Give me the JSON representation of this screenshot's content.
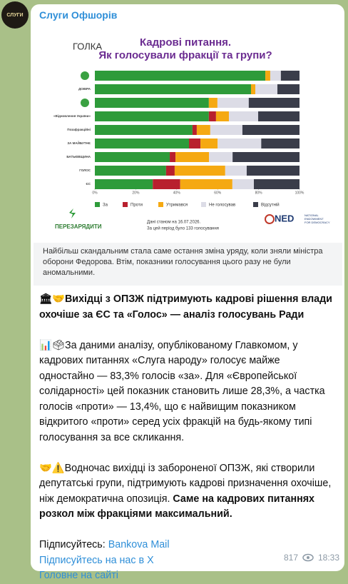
{
  "channel": {
    "name": "Слуги Офшорів",
    "avatar_text": "СЛУГИ"
  },
  "chart_data": {
    "type": "stacked-barh",
    "logo": "ГОЛКА",
    "title": "Кадрові питання.",
    "subtitle": "Як голосували фракції та групи?",
    "categories": [
      null,
      "ДОВІРА",
      null,
      "«Відновлення України»",
      "Позафракційні",
      "ЗА МАЙБУТНЄ",
      "БАТЬКІВЩИНА",
      "ГОЛОС",
      "ЄС"
    ],
    "series": [
      {
        "name": "За",
        "color": "#2e9b3a",
        "values": [
          83.3,
          76.3,
          55.7,
          55.7,
          47.7,
          46,
          36.6,
          34.8,
          28.3
        ]
      },
      {
        "name": "Проти",
        "color": "#b8202e",
        "values": [
          0,
          0,
          0,
          3.5,
          2.1,
          5.6,
          2.8,
          4.2,
          13.4
        ]
      },
      {
        "name": "Утримався",
        "color": "#f5a912",
        "values": [
          2.4,
          2.1,
          4.2,
          6.3,
          6.6,
          8.4,
          16.4,
          24.7,
          25.5
        ]
      },
      {
        "name": "Не голосував",
        "color": "#dcdce6",
        "values": [
          5.2,
          10.8,
          15.3,
          14.3,
          15.7,
          21.3,
          11.5,
          10.5,
          10.5
        ]
      },
      {
        "name": "Відсутній",
        "color": "#3a3d4a",
        "values": [
          9.1,
          10.8,
          24.8,
          20.2,
          27.9,
          18.7,
          32.7,
          25.8,
          22.3
        ]
      }
    ],
    "xlim": [
      0,
      100
    ],
    "xticks": [
      {
        "value": 0,
        "label": "0%"
      },
      {
        "value": 20,
        "label": "20%"
      },
      {
        "value": 40,
        "label": "40%"
      },
      {
        "value": 60,
        "label": "60%"
      },
      {
        "value": 80,
        "label": "80%"
      },
      {
        "value": 100,
        "label": "100%"
      }
    ],
    "footer_brand": "ПЕРЕЗАРЯДИТИ",
    "footer_note": [
      "Дані станом на 16.07.2026.",
      "За цей період було 133 голосування"
    ],
    "sponsor": "NED",
    "sponsor_full": [
      "NATIONAL",
      "ENDOWMENT",
      "FOR DEMOCRACY"
    ]
  },
  "caption": "Найбільш скандальним стала саме остання зміна уряду, коли зняли міністра оборони Федорова. Втім, показники голосування цього разу не були аномальними.",
  "post": {
    "heading": "🏛🤝Вихідці з ОПЗЖ підтримують кадрові рішення влади охочіше за ЄС та «Голос» — аналіз голосувань Ради",
    "paragraph": "📊🗳За даними аналізу, опублікованому Главкомом, у кадрових питаннях «Слуга народу» голосує майже одностайно — 83,3% голосів «за». Для «Європейської солідарності» цей показник становить лише 28,3%, а частка голосів «проти» — 13,4%, що є найвищим показником відкритого «проти» серед усіх фракцій на будь-якому типі голосування за все скликання.",
    "paragraph2": [
      "🤝⚠️Водночас вихідці із забороненої ОПЗЖ, які створили депутатські групи, підтримують кадрові призначення охочіше, ніж демократична опозиція. ",
      "Саме на кадрових питаннях розкол між фракціями максимальний."
    ],
    "subscribe_label": "Підписуйтесь:",
    "links": [
      "Bankova Mail",
      "Підписуйтесь на нас в Х",
      "Головне на сайті"
    ],
    "views": 817,
    "time": "18:33"
  }
}
